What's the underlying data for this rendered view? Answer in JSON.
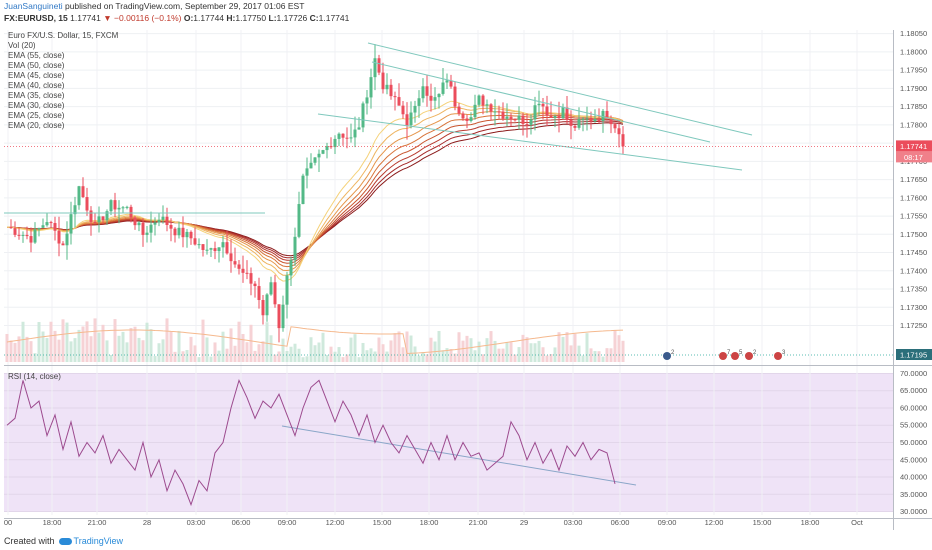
{
  "header": {
    "author": "JuanSanguineti",
    "published": " published on TradingView.com, September 29, 2017 01:06 EST"
  },
  "symbol": {
    "ticker": "FX:EURUSD, 15",
    "last": "1.17741",
    "change": "−0.00116 (−0.1%)",
    "o_label": "O:",
    "o": "1.17744",
    "h_label": "H:",
    "h": "1.17750",
    "l_label": "L:",
    "l": "1.17726",
    "c_label": "C:",
    "c": "1.17741"
  },
  "legend": {
    "name": "Euro FX/U.S. Dollar, 15, FXCM",
    "items": [
      "Vol (20)",
      "EMA (55, close)",
      "EMA (50, close)",
      "EMA (45, close)",
      "EMA (40, close)",
      "EMA (35, close)",
      "EMA (30, close)",
      "EMA (25, close)",
      "EMA (20, close)"
    ]
  },
  "rsi_label": "RSI (14, close)",
  "footer": {
    "created": "Created with",
    "brand": "TradingView"
  },
  "colors": {
    "up": "#53b987",
    "down": "#eb4d5c",
    "trend": "#7fc8bd",
    "rsi_line": "#9c4a8e",
    "rsi_bg": "#efe3f7",
    "last_price": "#eb4d5c",
    "low_price": "#26a69a"
  },
  "chart_data": [
    {
      "type": "candlestick",
      "title": "Euro FX/U.S. Dollar, 15, FXCM",
      "ylim": [
        1.1715,
        1.1806
      ],
      "y_ticks": [
        "1.18050",
        "1.18000",
        "1.17950",
        "1.17900",
        "1.17850",
        "1.17800",
        "1.17750",
        "1.17700",
        "1.17650",
        "1.17600",
        "1.17550",
        "1.17500",
        "1.17450",
        "1.17400",
        "1.17350",
        "1.17300",
        "1.17250"
      ],
      "price_labels": {
        "last": "1.17741",
        "countdown": "08:17",
        "volume_line": "1.17195"
      },
      "x_ticks": [
        "00",
        "18:00",
        "21:00",
        "28",
        "03:00",
        "06:00",
        "09:00",
        "12:00",
        "15:00",
        "18:00",
        "21:00",
        "29",
        "03:00",
        "06:00",
        "09:00",
        "12:00",
        "15:00",
        "18:00",
        "Oct"
      ],
      "event_badges": [
        "2",
        "7",
        "5",
        "2",
        "3"
      ],
      "bars": 155,
      "close_path": [
        [
          0,
          1.1752
        ],
        [
          6,
          1.1749
        ],
        [
          10,
          1.1754
        ],
        [
          14,
          1.1747
        ],
        [
          18,
          1.1763
        ],
        [
          22,
          1.1752
        ],
        [
          26,
          1.1758
        ],
        [
          30,
          1.1757
        ],
        [
          34,
          1.175
        ],
        [
          38,
          1.1755
        ],
        [
          42,
          1.1751
        ],
        [
          46,
          1.1749
        ],
        [
          50,
          1.1745
        ],
        [
          54,
          1.1748
        ],
        [
          58,
          1.174
        ],
        [
          62,
          1.1736
        ],
        [
          64,
          1.1728
        ],
        [
          66,
          1.1737
        ],
        [
          68,
          1.1725
        ],
        [
          70,
          1.1738
        ],
        [
          72,
          1.175
        ],
        [
          74,
          1.1765
        ],
        [
          77,
          1.177
        ],
        [
          80,
          1.1774
        ],
        [
          83,
          1.1778
        ],
        [
          86,
          1.1776
        ],
        [
          88,
          1.178
        ],
        [
          90,
          1.1789
        ],
        [
          92,
          1.1798
        ],
        [
          94,
          1.1791
        ],
        [
          96,
          1.1788
        ],
        [
          98,
          1.1785
        ],
        [
          100,
          1.1781
        ],
        [
          102,
          1.1784
        ],
        [
          104,
          1.1792
        ],
        [
          106,
          1.1786
        ],
        [
          108,
          1.1788
        ],
        [
          110,
          1.1793
        ],
        [
          112,
          1.1786
        ],
        [
          114,
          1.1783
        ],
        [
          116,
          1.1782
        ],
        [
          118,
          1.1787
        ],
        [
          121,
          1.1785
        ],
        [
          124,
          1.1783
        ],
        [
          127,
          1.1782
        ],
        [
          130,
          1.1781
        ],
        [
          133,
          1.1787
        ],
        [
          136,
          1.1782
        ],
        [
          139,
          1.1784
        ],
        [
          141,
          1.1779
        ],
        [
          144,
          1.1781
        ],
        [
          147,
          1.1782
        ],
        [
          150,
          1.1783
        ],
        [
          152,
          1.178
        ],
        [
          155,
          1.17741
        ]
      ]
    },
    {
      "type": "line",
      "title": "RSI (14, close)",
      "ylim": [
        29,
        71
      ],
      "y_ticks": [
        "70.0000",
        "65.0000",
        "60.0000",
        "55.0000",
        "50.0000",
        "45.0000",
        "40.0000",
        "35.0000",
        "30.0000"
      ],
      "x": [
        0,
        2,
        4,
        6,
        8,
        10,
        12,
        14,
        16,
        18,
        20,
        22,
        24,
        26,
        28,
        30,
        32,
        34,
        36,
        38,
        40,
        42,
        44,
        46,
        48,
        50,
        52,
        54,
        56,
        58,
        60,
        62,
        64,
        66,
        68,
        70,
        72,
        74,
        76,
        78,
        80,
        82,
        84,
        86,
        88,
        90,
        92,
        94,
        96,
        98,
        100,
        102,
        104,
        106,
        108,
        110,
        112,
        114,
        116,
        118,
        120,
        122,
        124,
        126,
        128,
        130,
        132,
        134,
        136,
        138,
        140,
        142,
        144,
        146,
        148,
        150,
        152
      ],
      "values": [
        55,
        57,
        68,
        60,
        62,
        52,
        58,
        48,
        56,
        46,
        50,
        47,
        52,
        44,
        48,
        45,
        42,
        50,
        40,
        45,
        36,
        42,
        38,
        32,
        39,
        36,
        47,
        50,
        60,
        68,
        63,
        57,
        62,
        60,
        64,
        58,
        52,
        60,
        66,
        68,
        62,
        56,
        62,
        58,
        52,
        58,
        50,
        55,
        50,
        47,
        52,
        48,
        44,
        50,
        45,
        52,
        45,
        50,
        46,
        47,
        42,
        44,
        46,
        56,
        52,
        45,
        50,
        44,
        48,
        42,
        49,
        46,
        50,
        45,
        48,
        47,
        38
      ]
    }
  ]
}
